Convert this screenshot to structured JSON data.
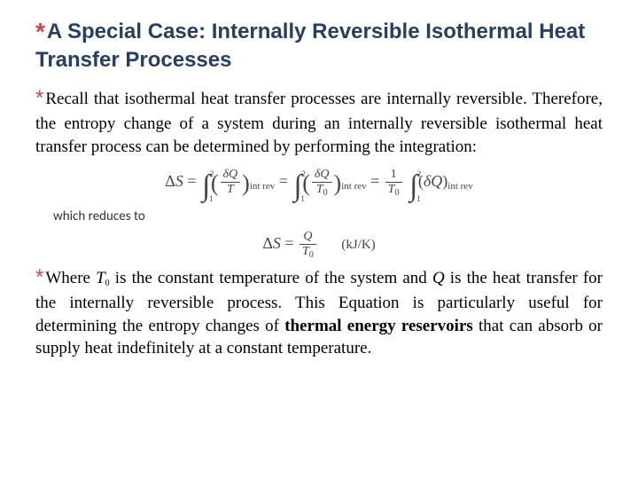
{
  "colors": {
    "asterisk": "#c64847",
    "heading": "#254061",
    "body": "#000000",
    "equation": "#444444",
    "background": "#ffffff"
  },
  "typography": {
    "heading_font": "Arial",
    "heading_size_pt": 18,
    "heading_weight": "bold",
    "body_font": "Times New Roman / Georgia serif",
    "body_size_pt": 14,
    "body_align": "justify",
    "equation_font": "Times New Roman",
    "equation_color": "#444444"
  },
  "heading": {
    "text": "A Special Case: Internally Reversible Isothermal Heat Transfer Processes"
  },
  "para1": {
    "text": "Recall that isothermal heat transfer processes are internally reversible. Therefore, the entropy change of a system during an internally reversible isothermal heat transfer process can be determined by performing the integration:"
  },
  "equation1": {
    "lhs": "ΔS",
    "lower_limit": "1",
    "upper_limit": "2",
    "term1_num": "δQ",
    "term1_den": "T",
    "term2_num": "δQ",
    "term2_den": "T₀",
    "term3_coef_num": "1",
    "term3_coef_den": "T₀",
    "term3_integrand": "(δQ)",
    "subscript": "int rev"
  },
  "reduces_label": "which reduces to",
  "equation2": {
    "lhs": "ΔS",
    "num": "Q",
    "den": "T₀",
    "unit": "(kJ/K)"
  },
  "para2": {
    "prefix": "Where ",
    "t0": "T",
    "t0sub": "0",
    "mid1": " is the constant temperature of the system and ",
    "q": "Q",
    "mid2": " is the heat transfer for the internally reversible process. This Equation is particularly useful for determining the entropy changes of ",
    "bold": "thermal energy reservoirs",
    "tail": " that can absorb or supply heat indefinitely at a constant temperature."
  }
}
